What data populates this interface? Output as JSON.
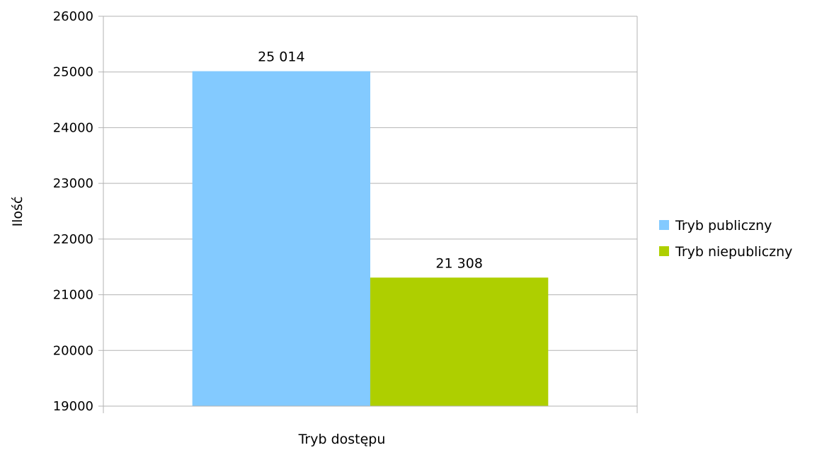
{
  "chart_data": {
    "type": "bar",
    "categories": [
      ""
    ],
    "series": [
      {
        "name": "Tryb publiczny",
        "values": [
          25014
        ],
        "label": "25 014",
        "color": "#83CAFF"
      },
      {
        "name": "Tryb niepubliczny",
        "values": [
          21308
        ],
        "label": "21 308",
        "color": "#AECF00"
      }
    ],
    "xlabel": "Tryb dostępu",
    "ylabel": "Ilość",
    "ylim": [
      19000,
      26000
    ],
    "yticks": [
      "19000",
      "20000",
      "21000",
      "22000",
      "23000",
      "24000",
      "25000",
      "26000"
    ],
    "grid": true,
    "legend_position": "right",
    "colors": {
      "grid": "#b3b3b3",
      "axis": "#b3b3b3"
    }
  }
}
